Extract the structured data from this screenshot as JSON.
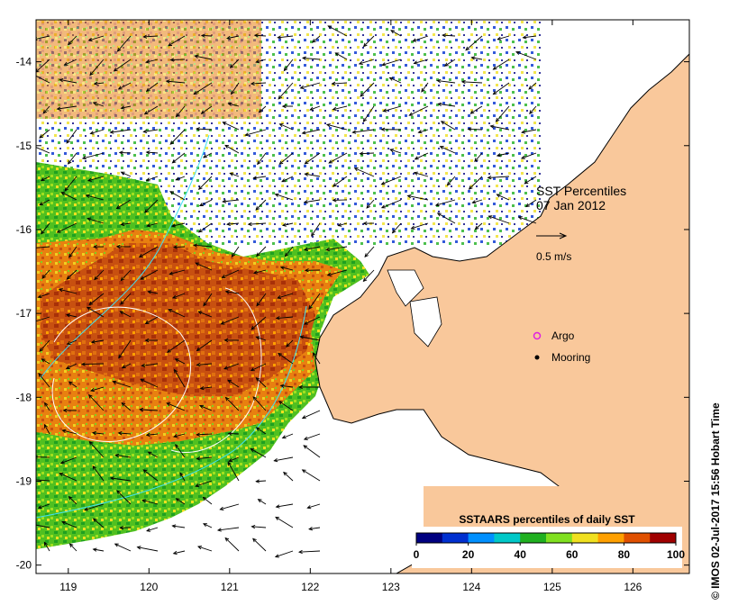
{
  "title": {
    "line1": "SST Percentiles",
    "line2": "07 Jan 2012"
  },
  "scale_arrow": {
    "label": "0.5 m/s"
  },
  "legend_markers": [
    {
      "label": "Argo",
      "color": "#e020e0"
    },
    {
      "label": "Mooring",
      "color": "#000000"
    }
  ],
  "colorbar": {
    "title": "SSTAARS percentiles of daily SST",
    "tick_labels": [
      "0",
      "20",
      "40",
      "60",
      "80",
      "100"
    ],
    "colors": [
      "#000080",
      "#0030d0",
      "#0090ff",
      "#00c8c8",
      "#20b020",
      "#80e020",
      "#f0e020",
      "#ffa000",
      "#e05000",
      "#a00000"
    ]
  },
  "axes": {
    "x_ticks": [
      "119",
      "120",
      "121",
      "122",
      "123",
      "124",
      "125",
      "126"
    ],
    "y_ticks": [
      "-14",
      "-15",
      "-16",
      "-17",
      "-18",
      "-19",
      "-20"
    ],
    "lon_range": [
      118.6,
      126.7
    ],
    "lat_range": [
      -13.5,
      -20.1
    ]
  },
  "credit": "© IMOS 02-Jul-2017 15:56 Hobart Time",
  "colors": {
    "land": "#f9c89b",
    "frame": "#000000",
    "contour": "#40e0f0"
  }
}
